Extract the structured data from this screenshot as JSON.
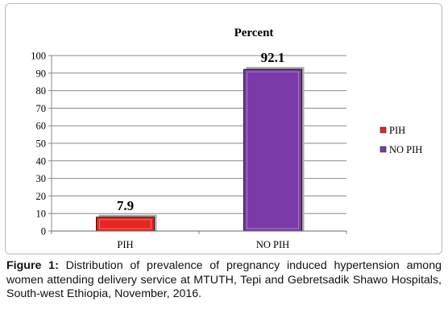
{
  "chart_data": {
    "type": "bar",
    "title": "Percent",
    "categories": [
      "PIH",
      "NO PIH"
    ],
    "values": [
      7.9,
      92.1
    ],
    "data_labels": [
      "7.9",
      "92.1"
    ],
    "colors": [
      "#e8251f",
      "#7b3aa8"
    ],
    "legend": [
      "PIH",
      "NO PIH"
    ],
    "legend_placement": "right",
    "ylim": [
      0,
      100
    ],
    "yticks": [
      0,
      10,
      20,
      30,
      40,
      50,
      60,
      70,
      80,
      90,
      100
    ],
    "ytick_labels": [
      "0",
      "10",
      "20",
      "30",
      "40",
      "50",
      "60",
      "70",
      "80",
      "90",
      "100"
    ],
    "grid": true,
    "xlabel": "",
    "ylabel": ""
  },
  "caption": {
    "label": "Figure 1:",
    "text": " Distribution of prevalence of pregnancy induced hypertension among women attending delivery service at MTUTH, Tepi and Gebretsadik Shawo Hospitals, South-west Ethiopia, November, 2016."
  }
}
